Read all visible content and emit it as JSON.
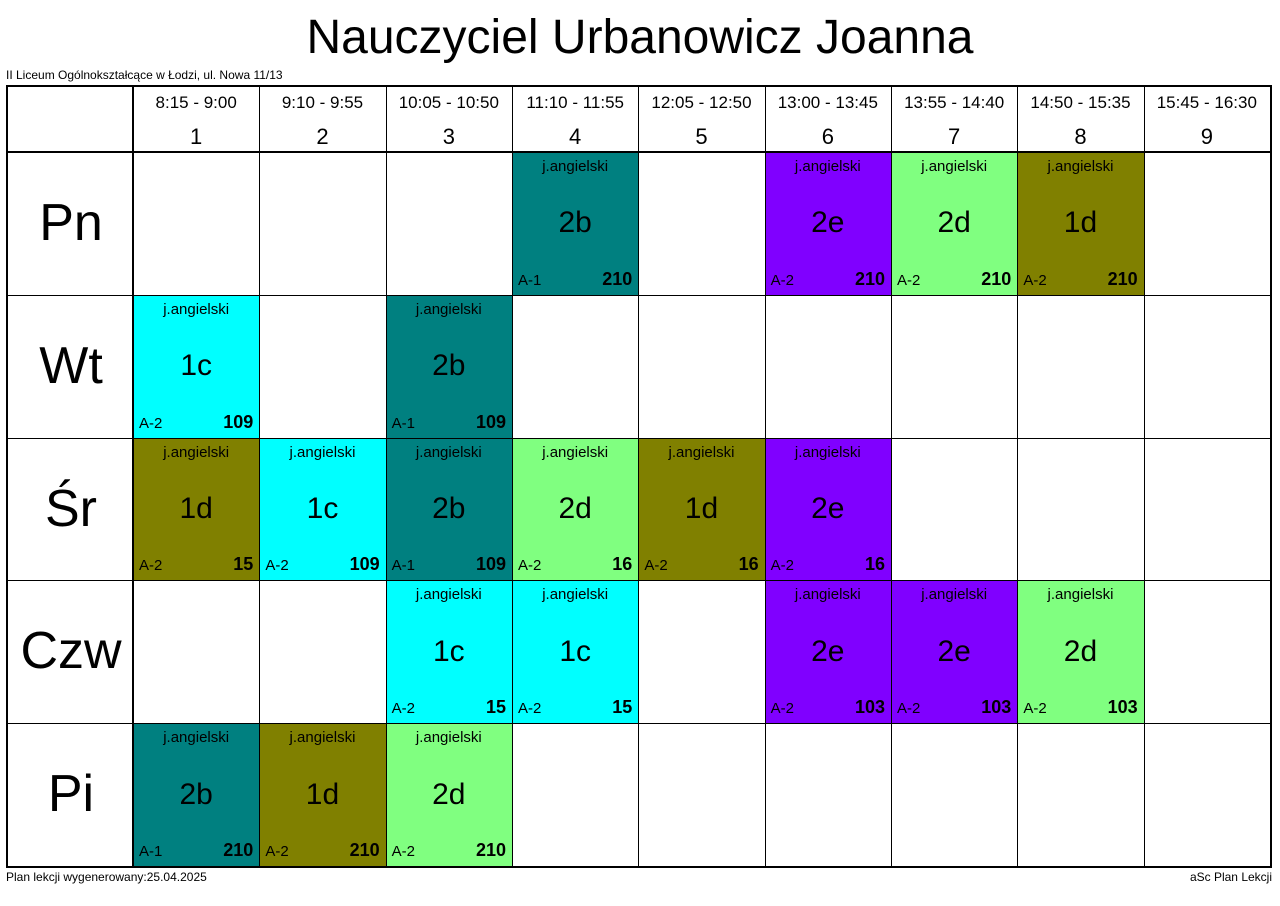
{
  "title": "Nauczyciel Urbanowicz Joanna",
  "school": "II Liceum Ogólnokształcące w Łodzi, ul. Nowa 11/13",
  "footer": {
    "generated": "Plan lekcji wygenerowany:25.04.2025",
    "app": "aSc Plan Lekcji"
  },
  "colors": {
    "2b": "#008080",
    "2e": "#8000FF",
    "2d": "#80FF80",
    "1d": "#808000",
    "1c": "#00FFFF"
  },
  "periods": [
    {
      "time": "8:15 - 9:00",
      "number": "1"
    },
    {
      "time": "9:10 - 9:55",
      "number": "2"
    },
    {
      "time": "10:05 - 10:50",
      "number": "3"
    },
    {
      "time": "11:10 - 11:55",
      "number": "4"
    },
    {
      "time": "12:05 - 12:50",
      "number": "5"
    },
    {
      "time": "13:00 - 13:45",
      "number": "6"
    },
    {
      "time": "13:55 - 14:40",
      "number": "7"
    },
    {
      "time": "14:50 - 15:35",
      "number": "8"
    },
    {
      "time": "15:45 - 16:30",
      "number": "9"
    }
  ],
  "days": [
    "Pn",
    "Wt",
    "Śr",
    "Czw",
    "Pi"
  ],
  "lessons": [
    {
      "day": 1,
      "period": 4,
      "subject": "j.angielski",
      "class": "2b",
      "group": "A-1",
      "room": "210"
    },
    {
      "day": 1,
      "period": 6,
      "subject": "j.angielski",
      "class": "2e",
      "group": "A-2",
      "room": "210"
    },
    {
      "day": 1,
      "period": 7,
      "subject": "j.angielski",
      "class": "2d",
      "group": "A-2",
      "room": "210"
    },
    {
      "day": 1,
      "period": 8,
      "subject": "j.angielski",
      "class": "1d",
      "group": "A-2",
      "room": "210"
    },
    {
      "day": 2,
      "period": 1,
      "subject": "j.angielski",
      "class": "1c",
      "group": "A-2",
      "room": "109"
    },
    {
      "day": 2,
      "period": 3,
      "subject": "j.angielski",
      "class": "2b",
      "group": "A-1",
      "room": "109"
    },
    {
      "day": 3,
      "period": 1,
      "subject": "j.angielski",
      "class": "1d",
      "group": "A-2",
      "room": "15"
    },
    {
      "day": 3,
      "period": 2,
      "subject": "j.angielski",
      "class": "1c",
      "group": "A-2",
      "room": "109"
    },
    {
      "day": 3,
      "period": 3,
      "subject": "j.angielski",
      "class": "2b",
      "group": "A-1",
      "room": "109"
    },
    {
      "day": 3,
      "period": 4,
      "subject": "j.angielski",
      "class": "2d",
      "group": "A-2",
      "room": "16"
    },
    {
      "day": 3,
      "period": 5,
      "subject": "j.angielski",
      "class": "1d",
      "group": "A-2",
      "room": "16"
    },
    {
      "day": 3,
      "period": 6,
      "subject": "j.angielski",
      "class": "2e",
      "group": "A-2",
      "room": "16"
    },
    {
      "day": 4,
      "period": 3,
      "subject": "j.angielski",
      "class": "1c",
      "group": "A-2",
      "room": "15"
    },
    {
      "day": 4,
      "period": 4,
      "subject": "j.angielski",
      "class": "1c",
      "group": "A-2",
      "room": "15"
    },
    {
      "day": 4,
      "period": 6,
      "subject": "j.angielski",
      "class": "2e",
      "group": "A-2",
      "room": "103"
    },
    {
      "day": 4,
      "period": 7,
      "subject": "j.angielski",
      "class": "2e",
      "group": "A-2",
      "room": "103"
    },
    {
      "day": 4,
      "period": 8,
      "subject": "j.angielski",
      "class": "2d",
      "group": "A-2",
      "room": "103"
    },
    {
      "day": 5,
      "period": 1,
      "subject": "j.angielski",
      "class": "2b",
      "group": "A-1",
      "room": "210"
    },
    {
      "day": 5,
      "period": 2,
      "subject": "j.angielski",
      "class": "1d",
      "group": "A-2",
      "room": "210"
    },
    {
      "day": 5,
      "period": 3,
      "subject": "j.angielski",
      "class": "2d",
      "group": "A-2",
      "room": "210"
    }
  ]
}
